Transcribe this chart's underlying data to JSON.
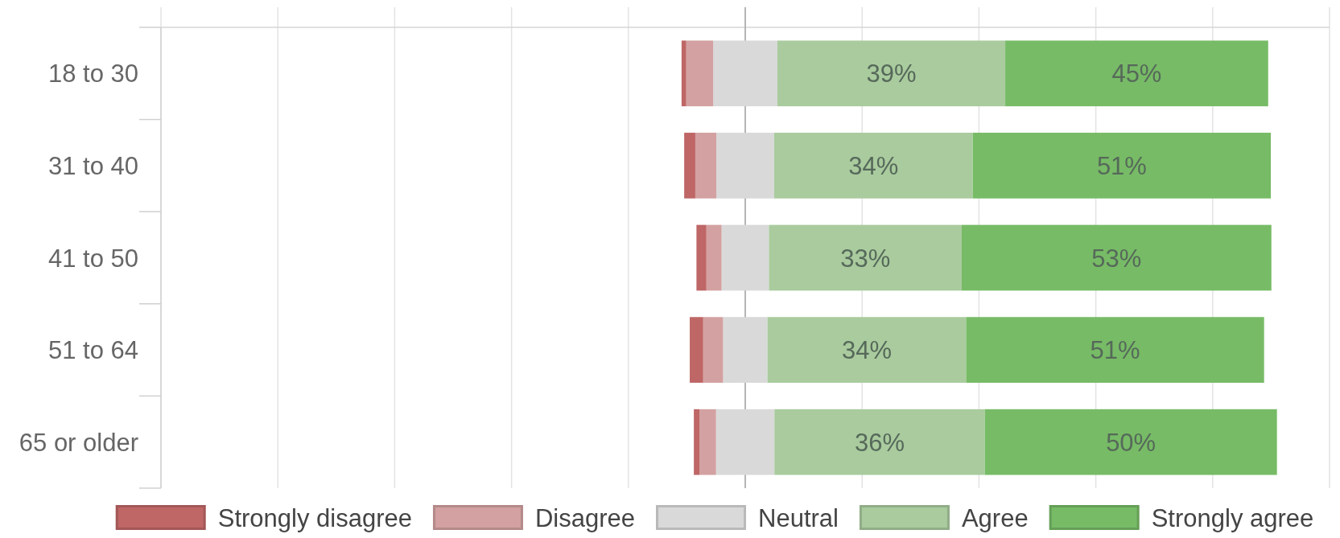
{
  "chart_data": {
    "type": "bar",
    "orientation": "horizontal",
    "stacked": true,
    "categories": [
      "18 to 30",
      "31 to 40",
      "41 to 50",
      "51 to 64",
      "65 or older"
    ],
    "series": [
      {
        "name": "Neutral",
        "color": "#d9d9d9",
        "values": [
          -5.5,
          -4.95,
          -4.05,
          -3.8,
          -5
        ]
      },
      {
        "name": "Disagree",
        "color": "#d3a1a1",
        "values": [
          -4.6,
          -3.6,
          -2.6,
          -3.4,
          -2.8
        ]
      },
      {
        "name": "Strongly disagree",
        "color": "#bf6666",
        "values": [
          -0.8,
          -1.9,
          -1.7,
          -2.3,
          -1.0
        ]
      },
      {
        "color": "#d9d9d9",
        "values": [
          5.5,
          4.95,
          4.05,
          3.8,
          5
        ]
      },
      {
        "name": "Agree",
        "color": "#a9cb9e",
        "values": [
          39,
          34,
          33,
          34,
          36
        ],
        "value_labels": [
          "39%",
          "34%",
          "33%",
          "34%",
          "36%"
        ]
      },
      {
        "name": "Strongly agree",
        "color": "#77bb66",
        "values": [
          45,
          51,
          53,
          51,
          50
        ],
        "value_labels": [
          "45%",
          "51%",
          "53%",
          "51%",
          "50%"
        ]
      }
    ],
    "xlim": [
      -100,
      100
    ],
    "xticks": [
      {
        "value": -100,
        "label": null
      },
      {
        "value": -80,
        "label": null
      },
      {
        "value": -60,
        "label": null
      },
      {
        "value": -40,
        "label": null
      },
      {
        "value": -20,
        "label": null
      },
      {
        "value": 0,
        "label": null
      },
      {
        "value": 20,
        "label": null
      },
      {
        "value": 40,
        "label": null
      },
      {
        "value": 60,
        "label": null
      },
      {
        "value": 80,
        "label": null
      },
      {
        "value": 100,
        "label": null
      }
    ],
    "tick_labels": "y",
    "grid": "x",
    "legend": "bottom",
    "ref_lines": [
      {
        "axis": "x",
        "value": 0,
        "color": "#b5b5b5"
      }
    ]
  }
}
